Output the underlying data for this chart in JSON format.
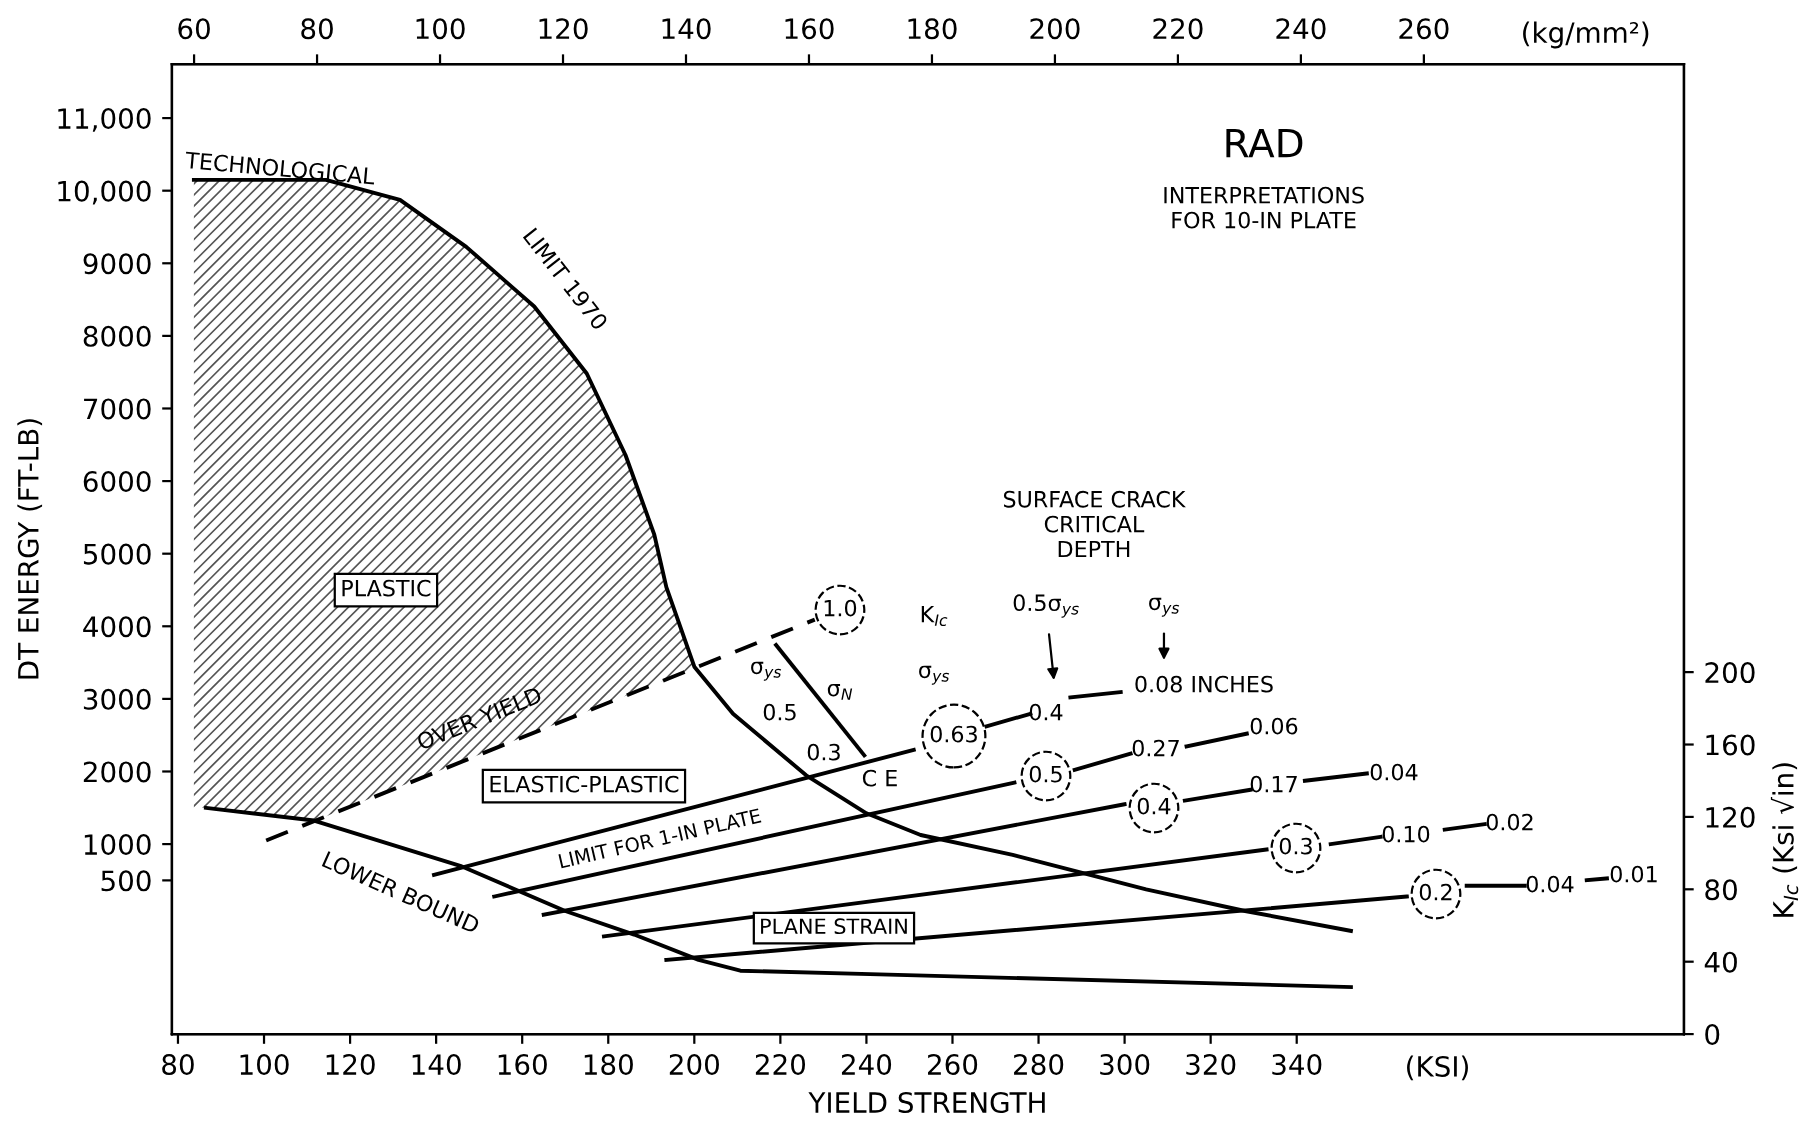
{
  "chart_data": {
    "type": "line",
    "title": "RAD",
    "subtitle": "INTERPRETATIONS\nFOR 10-IN PLATE",
    "xlabel": "YIELD STRENGTH",
    "ylabel": "DT ENERGY (FT-LB)",
    "y2label": "K$_{Ic}$ (Ksi √in)",
    "x2label": "(kg/mm²)",
    "xlim": [
      78.6,
      430
    ],
    "xticks": [
      80,
      100,
      120,
      140,
      160,
      180,
      200,
      220,
      240,
      260,
      280,
      300,
      320,
      340
    ],
    "x2lim": [
      56.4,
      302.3
    ],
    "x2ticks": [
      60,
      80,
      100,
      120,
      140,
      160,
      180,
      200,
      220,
      240,
      260
    ],
    "ylim": [
      -1617,
      11744
    ],
    "yticks": [
      500,
      1000,
      2000,
      3000,
      4000,
      5000,
      6000,
      7000,
      8000,
      9000,
      {
        "value": 10000,
        "label": "10,000"
      },
      {
        "value": 11000,
        "label": "11,000"
      }
    ],
    "y2lim": [
      0,
      536
    ],
    "y2ticks": [
      0,
      40,
      80,
      120,
      160,
      200
    ],
    "grid": false,
    "series": [
      {
        "axis": "y2",
        "color": "#000000",
        "x": [
          83.7,
          114.4,
          131.6,
          147,
          162.8,
          175,
          184,
          190.7,
          193.5,
          200,
          209,
          226,
          240,
          252.6,
          274,
          305,
          328,
          352.6
        ],
        "values": [
          472,
          472,
          461,
          435,
          402,
          365,
          320,
          276,
          247,
          203,
          177,
          143,
          122,
          110,
          99,
          80,
          68,
          57
        ]
      },
      {
        "axis": "y2",
        "color": "#000000",
        "x": [
          86.5,
          111.6,
          145.6,
          170,
          186,
          201,
          210.7,
          243,
          352.6
        ],
        "values": [
          125,
          118,
          93,
          68,
          55,
          41,
          35,
          33,
          26
        ]
      },
      {
        "axis": "y2",
        "color": "#000000",
        "line_style": "dashed",
        "x": [
          100.5,
          228
        ],
        "values": [
          107,
          229
        ]
      },
      {
        "axis": "y2",
        "color": "#000000",
        "x": [
          139.5,
          251,
          261,
          267.9,
          278.1,
          282,
          287.4,
          299.1
        ],
        "values": [
          88,
          157,
          null,
          170,
          177,
          null,
          186,
          189
        ]
      },
      {
        "axis": "y2",
        "color": "#000000",
        "x": [
          153.5,
          274.4,
          281,
          288.4,
          301.4,
          308,
          314.4,
          328.4
        ],
        "values": [
          76,
          139,
          null,
          146,
          155,
          null,
          159,
          166
        ]
      },
      {
        "axis": "y2",
        "color": "#000000",
        "x": [
          165,
          300,
          307,
          314,
          329.3,
          335,
          341.9,
          356.3
        ],
        "values": [
          66,
          127,
          null,
          129,
          135,
          null,
          140,
          144
        ]
      },
      {
        "axis": "y2",
        "color": "#000000",
        "x": [
          179,
          333,
          340,
          347.9,
          359.5,
          366,
          374.4,
          383.7
        ],
        "values": [
          54,
          102,
          null,
          105,
          109,
          null,
          113,
          116
        ]
      },
      {
        "axis": "y2",
        "color": "#000000",
        "x": [
          193.5,
          365.6,
          372,
          379.5,
          393,
          400,
          407.4,
          412.1
        ],
        "values": [
          41,
          76,
          null,
          82,
          82,
          null,
          85,
          86
        ]
      },
      {
        "axis": "y2",
        "color": "#000000",
        "x": [
          219,
          239.5
        ],
        "values": [
          215,
          154
        ]
      }
    ],
    "annotations": [
      "(KSI)",
      "TECHNOLOGICAL",
      "LIMIT 1970",
      "PLASTIC",
      "OVER YIELD",
      "ELASTIC-PLASTIC",
      "LIMIT FOR 1-IN PLATE",
      "LOWER BOUND",
      "PLANE STRAIN",
      "C E",
      "σ$_{ys}$",
      "0.5",
      "0.3",
      "σ$_{N}$",
      "1.0",
      "K$_{Ic}$",
      "σ$_{ys}$",
      "SURFACE CRACK\nCRITICAL\nDEPTH",
      "0.5σ$_{ys}$",
      "σ$_{ys}$",
      "0.63",
      "0.4",
      "0.08 INCHES",
      "0.5",
      "0.27",
      "0.06",
      "0.4",
      "0.17",
      "0.04",
      "0.3",
      "0.10",
      "0.02",
      "0.2",
      "0.04",
      "0.01"
    ]
  }
}
